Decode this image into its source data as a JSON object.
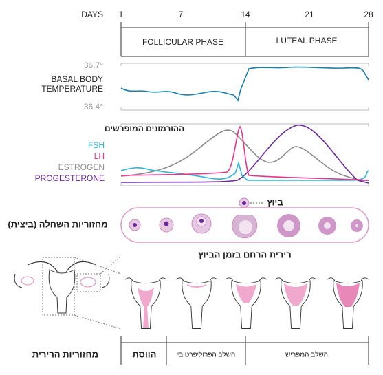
{
  "header": {
    "days_label": "DAYS",
    "days": [
      "1",
      "7",
      "14",
      "21",
      "28"
    ]
  },
  "phases": [
    "FOLLICULAR PHASE",
    "LUTEAL PHASE"
  ],
  "temperature": {
    "high": "36.7°",
    "label_lines": [
      "BASAL BODY",
      "TEMPERATURE"
    ],
    "low": "36.4°"
  },
  "hormones": {
    "title": "ההורמונים המופרשים",
    "legend": [
      {
        "name": "FSH",
        "color": "#2bb5d8"
      },
      {
        "name": "LH",
        "color": "#e8358a"
      },
      {
        "name": "ESTROGEN",
        "color": "#8c8c8c"
      },
      {
        "name": "PROGESTERONE",
        "color": "#6a2a9a"
      }
    ]
  },
  "ovary": {
    "title": "מחזוריות השחלה (ביצית)",
    "ovulation": "ביוץ"
  },
  "endometrium": {
    "title": "רירית הרחם בזמן הביוץ"
  },
  "cycle": {
    "title": "מחזוריות הרירית",
    "stages": [
      "הווסת",
      "השלב הפרוליפרטיבי",
      "השלב המפריש"
    ]
  }
}
